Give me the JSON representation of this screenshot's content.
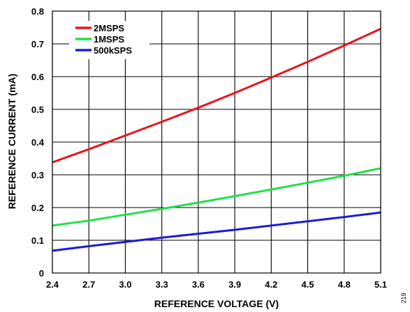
{
  "figure_id": "219",
  "chart_data": {
    "type": "line",
    "title": "",
    "xlabel": "REFERENCE VOLTAGE (V)",
    "ylabel": "REFERENCE CURRENT (mA)",
    "xlim": [
      2.4,
      5.1
    ],
    "ylim": [
      0,
      0.8
    ],
    "x_ticks": [
      2.4,
      2.7,
      3.0,
      3.3,
      3.6,
      3.9,
      4.2,
      4.5,
      4.8,
      5.1
    ],
    "x_tick_labels": [
      "2.4",
      "2.7",
      "3.0",
      "3.3",
      "3.6",
      "3.9",
      "4.2",
      "4.5",
      "4.8",
      "5.1"
    ],
    "y_ticks": [
      0,
      0.1,
      0.2,
      0.3,
      0.4,
      0.5,
      0.6,
      0.7,
      0.8
    ],
    "y_tick_labels": [
      "0",
      "0.1",
      "0.2",
      "0.3",
      "0.4",
      "0.5",
      "0.6",
      "0.7",
      "0.8"
    ],
    "grid": true,
    "legend_position": "top-left",
    "series": [
      {
        "name": "2MSPS",
        "color": "#e8141c",
        "x": [
          2.4,
          2.7,
          3.0,
          3.3,
          3.6,
          3.9,
          4.2,
          4.5,
          4.8,
          5.1
        ],
        "y": [
          0.338,
          0.378,
          0.42,
          0.462,
          0.505,
          0.55,
          0.597,
          0.645,
          0.695,
          0.746
        ]
      },
      {
        "name": "1MSPS",
        "color": "#22e04a",
        "x": [
          2.4,
          2.7,
          3.0,
          3.3,
          3.6,
          3.9,
          4.2,
          4.5,
          4.8,
          5.1
        ],
        "y": [
          0.145,
          0.16,
          0.178,
          0.196,
          0.215,
          0.235,
          0.255,
          0.276,
          0.297,
          0.32
        ]
      },
      {
        "name": "500kSPS",
        "color": "#1b1bd6",
        "x": [
          2.4,
          2.7,
          3.0,
          3.3,
          3.6,
          3.9,
          4.2,
          4.5,
          4.8,
          5.1
        ],
        "y": [
          0.068,
          0.082,
          0.095,
          0.108,
          0.12,
          0.132,
          0.145,
          0.158,
          0.171,
          0.185
        ]
      }
    ]
  }
}
